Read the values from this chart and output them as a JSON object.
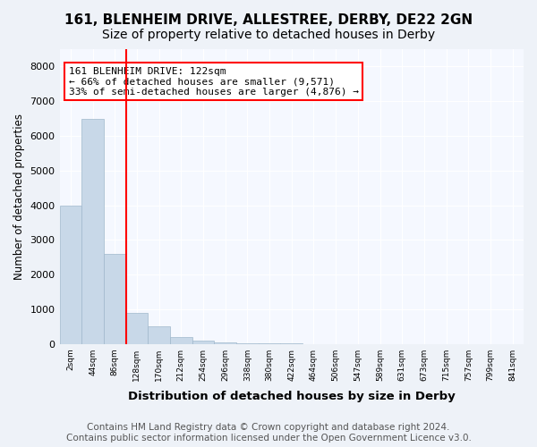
{
  "title": "161, BLENHEIM DRIVE, ALLESTREE, DERBY, DE22 2GN",
  "subtitle": "Size of property relative to detached houses in Derby",
  "xlabel": "Distribution of detached houses by size in Derby",
  "ylabel": "Number of detached properties",
  "footer1": "Contains HM Land Registry data © Crown copyright and database right 2024.",
  "footer2": "Contains public sector information licensed under the Open Government Licence v3.0.",
  "bin_labels": [
    "2sqm",
    "44sqm",
    "86sqm",
    "128sqm",
    "170sqm",
    "212sqm",
    "254sqm",
    "296sqm",
    "338sqm",
    "380sqm",
    "422sqm",
    "464sqm",
    "506sqm",
    "547sqm",
    "589sqm",
    "631sqm",
    "673sqm",
    "715sqm",
    "757sqm",
    "799sqm",
    "841sqm"
  ],
  "bar_values": [
    4000,
    6500,
    2600,
    900,
    500,
    200,
    100,
    50,
    20,
    10,
    5,
    0,
    0,
    0,
    0,
    0,
    0,
    0,
    0,
    0,
    0
  ],
  "bar_color": "#c8d8e8",
  "bar_edge_color": "#a0b8cc",
  "property_line_color": "red",
  "property_line_x": 2.5,
  "annotation_text": "161 BLENHEIM DRIVE: 122sqm\n← 66% of detached houses are smaller (9,571)\n33% of semi-detached houses are larger (4,876) →",
  "ylim": [
    0,
    8500
  ],
  "yticks": [
    0,
    1000,
    2000,
    3000,
    4000,
    5000,
    6000,
    7000,
    8000
  ],
  "bg_color": "#eef2f8",
  "plot_bg_color": "#f5f8ff",
  "grid_color": "#ffffff",
  "title_fontsize": 11,
  "subtitle_fontsize": 10,
  "annotation_fontsize": 8.0,
  "ylabel_fontsize": 8.5,
  "xlabel_fontsize": 9.5,
  "footer_fontsize": 7.5,
  "tick_fontsize": 6.5,
  "ytick_fontsize": 8
}
